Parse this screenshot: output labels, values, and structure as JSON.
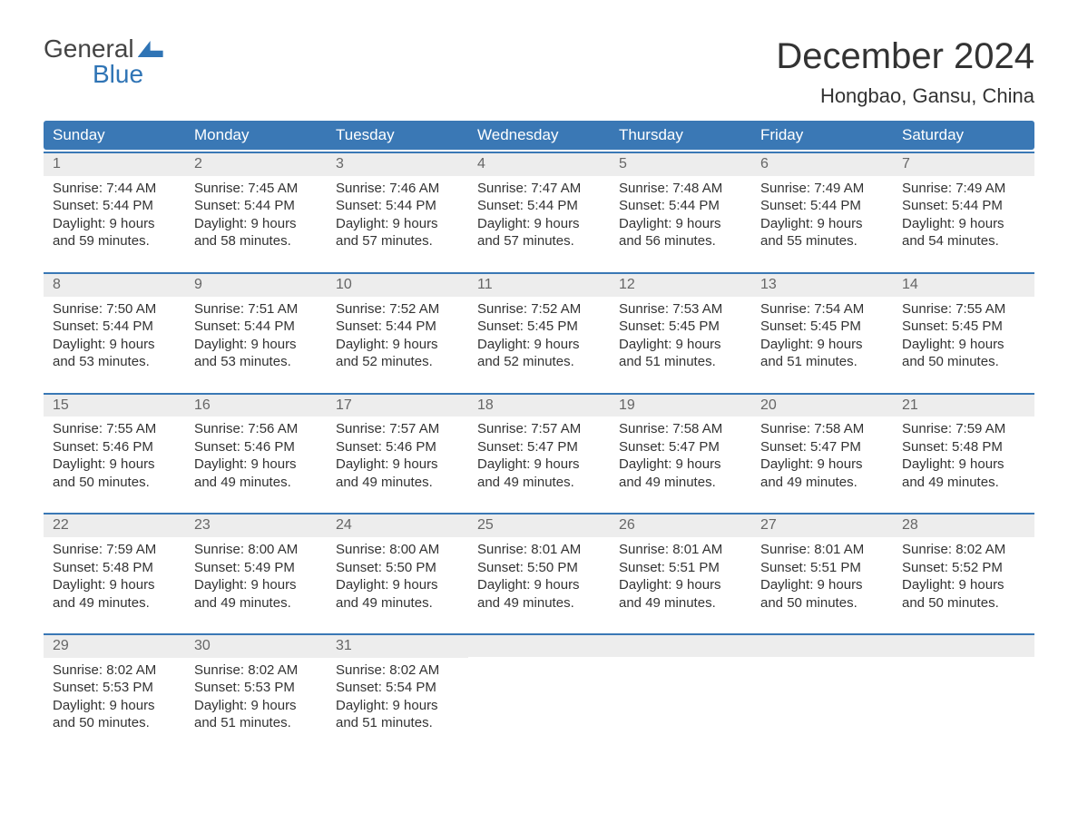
{
  "logo": {
    "top": "General",
    "bottom": "Blue"
  },
  "title": "December 2024",
  "location": "Hongbao, Gansu, China",
  "colors": {
    "header_bg": "#3a78b5",
    "header_text": "#ffffff",
    "band_bg": "#ededed",
    "band_text": "#666666",
    "body_text": "#333333",
    "rule": "#3a78b5",
    "logo_blue": "#2f74b5"
  },
  "weekdays": [
    "Sunday",
    "Monday",
    "Tuesday",
    "Wednesday",
    "Thursday",
    "Friday",
    "Saturday"
  ],
  "weeks": [
    [
      {
        "n": "1",
        "sr": "Sunrise: 7:44 AM",
        "ss": "Sunset: 5:44 PM",
        "d1": "Daylight: 9 hours",
        "d2": "and 59 minutes."
      },
      {
        "n": "2",
        "sr": "Sunrise: 7:45 AM",
        "ss": "Sunset: 5:44 PM",
        "d1": "Daylight: 9 hours",
        "d2": "and 58 minutes."
      },
      {
        "n": "3",
        "sr": "Sunrise: 7:46 AM",
        "ss": "Sunset: 5:44 PM",
        "d1": "Daylight: 9 hours",
        "d2": "and 57 minutes."
      },
      {
        "n": "4",
        "sr": "Sunrise: 7:47 AM",
        "ss": "Sunset: 5:44 PM",
        "d1": "Daylight: 9 hours",
        "d2": "and 57 minutes."
      },
      {
        "n": "5",
        "sr": "Sunrise: 7:48 AM",
        "ss": "Sunset: 5:44 PM",
        "d1": "Daylight: 9 hours",
        "d2": "and 56 minutes."
      },
      {
        "n": "6",
        "sr": "Sunrise: 7:49 AM",
        "ss": "Sunset: 5:44 PM",
        "d1": "Daylight: 9 hours",
        "d2": "and 55 minutes."
      },
      {
        "n": "7",
        "sr": "Sunrise: 7:49 AM",
        "ss": "Sunset: 5:44 PM",
        "d1": "Daylight: 9 hours",
        "d2": "and 54 minutes."
      }
    ],
    [
      {
        "n": "8",
        "sr": "Sunrise: 7:50 AM",
        "ss": "Sunset: 5:44 PM",
        "d1": "Daylight: 9 hours",
        "d2": "and 53 minutes."
      },
      {
        "n": "9",
        "sr": "Sunrise: 7:51 AM",
        "ss": "Sunset: 5:44 PM",
        "d1": "Daylight: 9 hours",
        "d2": "and 53 minutes."
      },
      {
        "n": "10",
        "sr": "Sunrise: 7:52 AM",
        "ss": "Sunset: 5:44 PM",
        "d1": "Daylight: 9 hours",
        "d2": "and 52 minutes."
      },
      {
        "n": "11",
        "sr": "Sunrise: 7:52 AM",
        "ss": "Sunset: 5:45 PM",
        "d1": "Daylight: 9 hours",
        "d2": "and 52 minutes."
      },
      {
        "n": "12",
        "sr": "Sunrise: 7:53 AM",
        "ss": "Sunset: 5:45 PM",
        "d1": "Daylight: 9 hours",
        "d2": "and 51 minutes."
      },
      {
        "n": "13",
        "sr": "Sunrise: 7:54 AM",
        "ss": "Sunset: 5:45 PM",
        "d1": "Daylight: 9 hours",
        "d2": "and 51 minutes."
      },
      {
        "n": "14",
        "sr": "Sunrise: 7:55 AM",
        "ss": "Sunset: 5:45 PM",
        "d1": "Daylight: 9 hours",
        "d2": "and 50 minutes."
      }
    ],
    [
      {
        "n": "15",
        "sr": "Sunrise: 7:55 AM",
        "ss": "Sunset: 5:46 PM",
        "d1": "Daylight: 9 hours",
        "d2": "and 50 minutes."
      },
      {
        "n": "16",
        "sr": "Sunrise: 7:56 AM",
        "ss": "Sunset: 5:46 PM",
        "d1": "Daylight: 9 hours",
        "d2": "and 49 minutes."
      },
      {
        "n": "17",
        "sr": "Sunrise: 7:57 AM",
        "ss": "Sunset: 5:46 PM",
        "d1": "Daylight: 9 hours",
        "d2": "and 49 minutes."
      },
      {
        "n": "18",
        "sr": "Sunrise: 7:57 AM",
        "ss": "Sunset: 5:47 PM",
        "d1": "Daylight: 9 hours",
        "d2": "and 49 minutes."
      },
      {
        "n": "19",
        "sr": "Sunrise: 7:58 AM",
        "ss": "Sunset: 5:47 PM",
        "d1": "Daylight: 9 hours",
        "d2": "and 49 minutes."
      },
      {
        "n": "20",
        "sr": "Sunrise: 7:58 AM",
        "ss": "Sunset: 5:47 PM",
        "d1": "Daylight: 9 hours",
        "d2": "and 49 minutes."
      },
      {
        "n": "21",
        "sr": "Sunrise: 7:59 AM",
        "ss": "Sunset: 5:48 PM",
        "d1": "Daylight: 9 hours",
        "d2": "and 49 minutes."
      }
    ],
    [
      {
        "n": "22",
        "sr": "Sunrise: 7:59 AM",
        "ss": "Sunset: 5:48 PM",
        "d1": "Daylight: 9 hours",
        "d2": "and 49 minutes."
      },
      {
        "n": "23",
        "sr": "Sunrise: 8:00 AM",
        "ss": "Sunset: 5:49 PM",
        "d1": "Daylight: 9 hours",
        "d2": "and 49 minutes."
      },
      {
        "n": "24",
        "sr": "Sunrise: 8:00 AM",
        "ss": "Sunset: 5:50 PM",
        "d1": "Daylight: 9 hours",
        "d2": "and 49 minutes."
      },
      {
        "n": "25",
        "sr": "Sunrise: 8:01 AM",
        "ss": "Sunset: 5:50 PM",
        "d1": "Daylight: 9 hours",
        "d2": "and 49 minutes."
      },
      {
        "n": "26",
        "sr": "Sunrise: 8:01 AM",
        "ss": "Sunset: 5:51 PM",
        "d1": "Daylight: 9 hours",
        "d2": "and 49 minutes."
      },
      {
        "n": "27",
        "sr": "Sunrise: 8:01 AM",
        "ss": "Sunset: 5:51 PM",
        "d1": "Daylight: 9 hours",
        "d2": "and 50 minutes."
      },
      {
        "n": "28",
        "sr": "Sunrise: 8:02 AM",
        "ss": "Sunset: 5:52 PM",
        "d1": "Daylight: 9 hours",
        "d2": "and 50 minutes."
      }
    ],
    [
      {
        "n": "29",
        "sr": "Sunrise: 8:02 AM",
        "ss": "Sunset: 5:53 PM",
        "d1": "Daylight: 9 hours",
        "d2": "and 50 minutes."
      },
      {
        "n": "30",
        "sr": "Sunrise: 8:02 AM",
        "ss": "Sunset: 5:53 PM",
        "d1": "Daylight: 9 hours",
        "d2": "and 51 minutes."
      },
      {
        "n": "31",
        "sr": "Sunrise: 8:02 AM",
        "ss": "Sunset: 5:54 PM",
        "d1": "Daylight: 9 hours",
        "d2": "and 51 minutes."
      },
      {
        "empty": true
      },
      {
        "empty": true
      },
      {
        "empty": true
      },
      {
        "empty": true
      }
    ]
  ]
}
